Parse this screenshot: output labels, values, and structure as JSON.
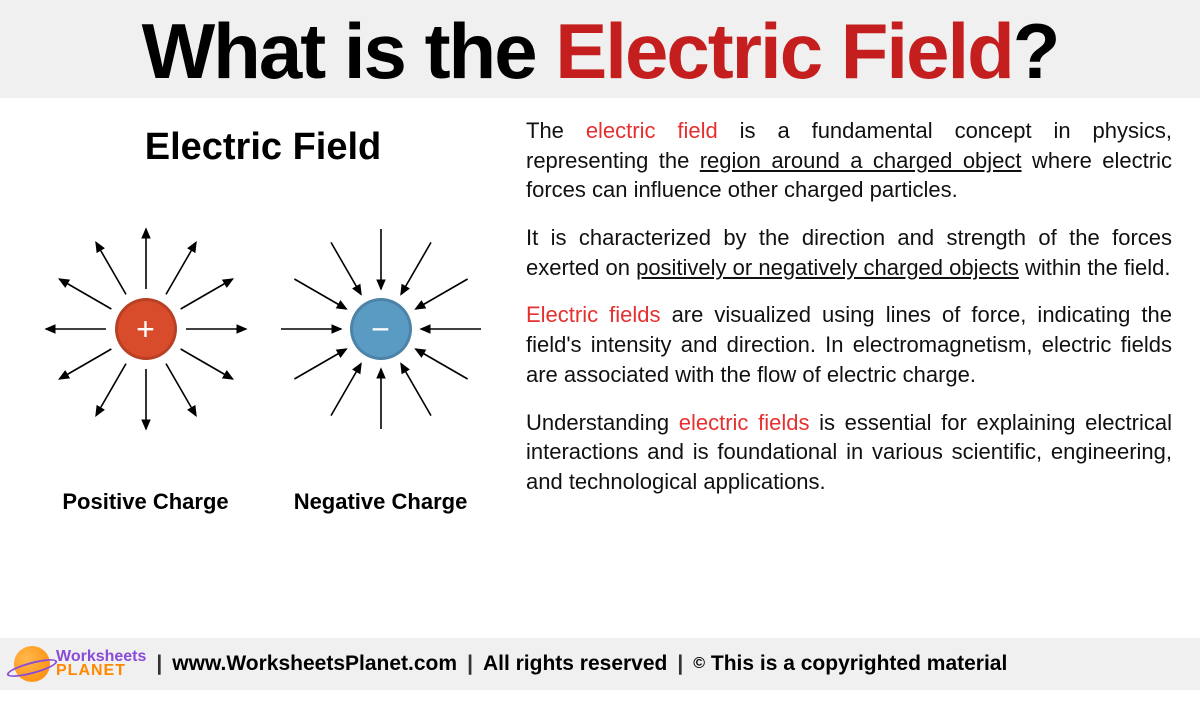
{
  "header": {
    "title_prefix": "What is the ",
    "title_highlight": "Electric Field",
    "title_suffix": "?",
    "colors": {
      "black": "#000000",
      "red": "#c41e1e"
    },
    "bg": "#f0f0f0",
    "fontsize": 78
  },
  "diagram": {
    "title": "Electric Field",
    "title_fontsize": 38,
    "positive": {
      "label": "Positive Charge",
      "symbol": "+",
      "fill": "#d94c2b",
      "arrow_direction": "outward",
      "arrow_count": 12,
      "radius_inner": 40,
      "radius_outer": 100,
      "circle_diameter": 62
    },
    "negative": {
      "label": "Negative Charge",
      "symbol": "−",
      "fill": "#5a9bc4",
      "arrow_direction": "inward",
      "arrow_count": 12,
      "radius_inner": 40,
      "radius_outer": 100,
      "circle_diameter": 62
    },
    "arrow_color": "#000000",
    "arrow_stroke_width": 1.6
  },
  "paragraphs": {
    "p1_a": "The ",
    "p1_term": "electric field",
    "p1_b": " is a fundamental concept in physics, representing the ",
    "p1_u": "region around a charged object",
    "p1_c": " where electric forces can influence other charged particles.",
    "p2_a": "It is characterized by the direction and strength of the forces exerted on ",
    "p2_u": "positively or negatively charged objects",
    "p2_b": " within the field.",
    "p3_term": "Electric fields",
    "p3_a": " are visualized using lines of force, indicating the field's intensity and direction. In electromagnetism, electric fields are associated with the flow of electric charge.",
    "p4_a": "Understanding ",
    "p4_term": "electric fields",
    "p4_b": " is essential for explaining electrical interactions and is foundational in various scientific, engineering, and technological applications.",
    "term_color": "#e63030",
    "fontsize": 22
  },
  "footer": {
    "brand_line1": "Worksheets",
    "brand_line2": "PLANET",
    "url": "www.WorksheetsPlanet.com",
    "rights": "All rights reserved",
    "copyright": "This is a copyrighted material",
    "sep": "|",
    "bg": "#f0f0f0",
    "brand_color_purple": "#8a4bd6",
    "brand_color_orange": "#ff8800"
  }
}
